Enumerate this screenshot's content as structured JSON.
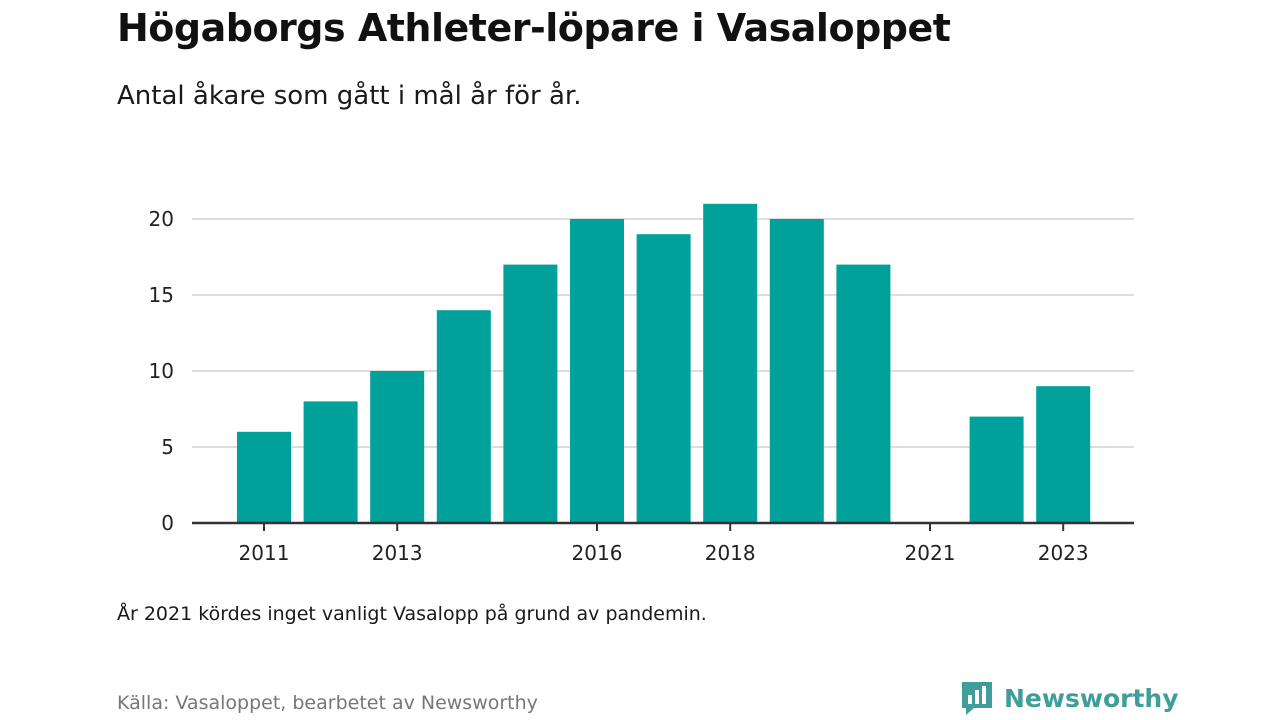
{
  "header": {
    "title": "Högaborgs Athleter-löpare i Vasaloppet",
    "subtitle": "Antal åkare som gått i mål år för år."
  },
  "footer": {
    "note": "År 2021 kördes inget vanligt Vasalopp på grund av pandemin.",
    "source": "Källa: Vasaloppet, bearbetet av Newsworthy",
    "brand": "Newsworthy",
    "brand_icon": "newsworthy-logo-icon"
  },
  "colors": {
    "bar": "#00a19a",
    "grid": "#dddddd",
    "axis": "#333333",
    "brand": "#3f9e9a"
  },
  "chart_data": {
    "type": "bar",
    "title": "Högaborgs Athleter-löpare i Vasaloppet",
    "subtitle": "Antal åkare som gått i mål år för år.",
    "categories": [
      "2011",
      "2012",
      "2013",
      "2014",
      "2015",
      "2016",
      "2017",
      "2018",
      "2019",
      "2020",
      "2021",
      "2022",
      "2023"
    ],
    "values": [
      6,
      8,
      10,
      14,
      17,
      20,
      19,
      21,
      20,
      17,
      0,
      7,
      9
    ],
    "x_tick_labels": [
      "2011",
      "2013",
      "2016",
      "2018",
      "2021",
      "2023"
    ],
    "y_ticks": [
      0,
      5,
      10,
      15,
      20
    ],
    "ylim": [
      0,
      21
    ],
    "xlabel": "",
    "ylabel": "",
    "grid": true,
    "legend": "none"
  }
}
